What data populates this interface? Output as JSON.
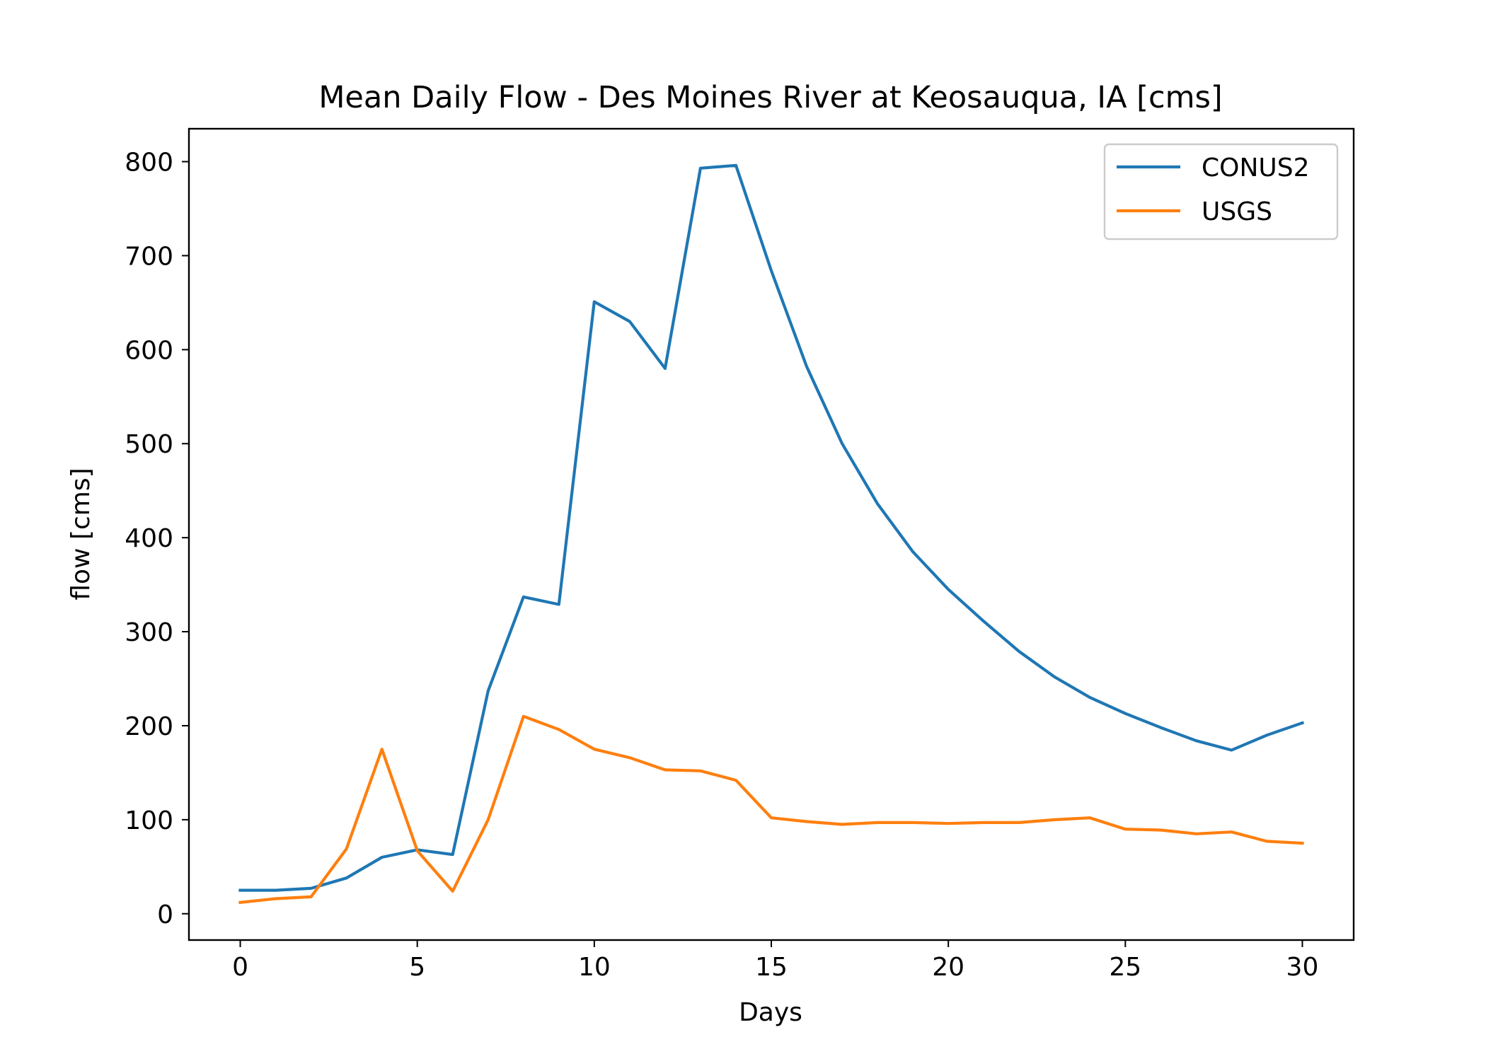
{
  "chart_data": {
    "type": "line",
    "title": "Mean Daily Flow - Des Moines River at Keosauqua, IA [cms]",
    "xlabel": "Days",
    "ylabel": "flow [cms]",
    "xlim": [
      -1.45,
      31.45
    ],
    "ylim": [
      -28,
      835
    ],
    "xticks": [
      0,
      5,
      10,
      15,
      20,
      25,
      30
    ],
    "yticks": [
      0,
      100,
      200,
      300,
      400,
      500,
      600,
      700,
      800
    ],
    "grid": false,
    "legend_position": "top-right",
    "x": [
      0,
      1,
      2,
      3,
      4,
      5,
      6,
      7,
      8,
      9,
      10,
      11,
      12,
      13,
      14,
      15,
      16,
      17,
      18,
      19,
      20,
      21,
      22,
      23,
      24,
      25,
      26,
      27,
      28,
      29,
      30
    ],
    "series": [
      {
        "name": "CONUS2",
        "color": "#1f77b4",
        "values": [
          25,
          25,
          27,
          38,
          60,
          68,
          63,
          237,
          337,
          329,
          651,
          630,
          580,
          793,
          796,
          684,
          582,
          500,
          436,
          385,
          345,
          311,
          279,
          252,
          230,
          213,
          198,
          184,
          174,
          190,
          203
        ]
      },
      {
        "name": "USGS",
        "color": "#ff7f0e",
        "values": [
          12,
          16,
          18,
          69,
          175,
          67,
          24,
          100,
          210,
          196,
          175,
          166,
          153,
          152,
          142,
          102,
          98,
          95,
          97,
          97,
          96,
          97,
          97,
          100,
          102,
          90,
          89,
          85,
          87,
          77,
          75
        ]
      }
    ]
  }
}
